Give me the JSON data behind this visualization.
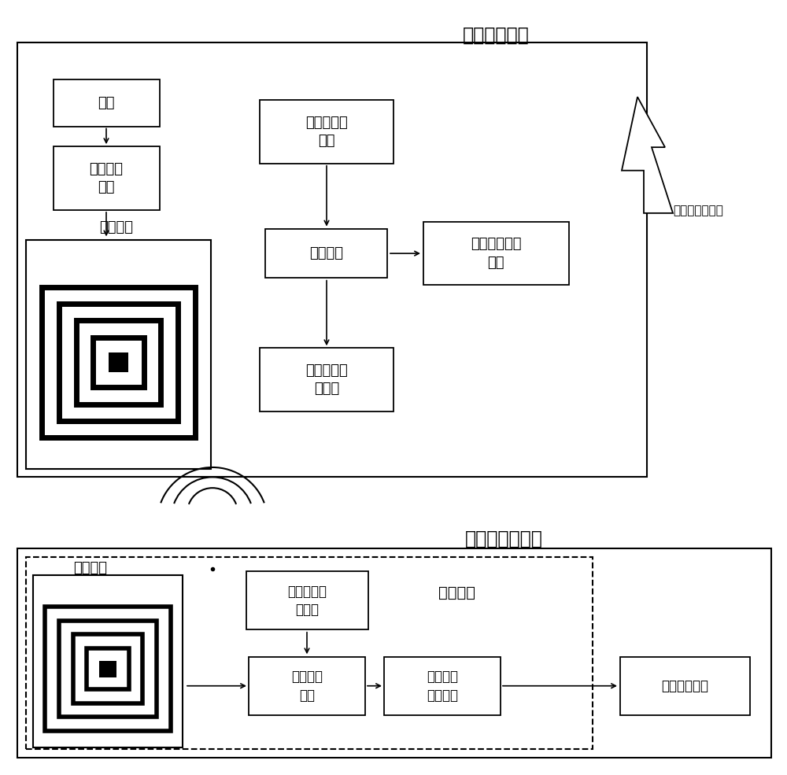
{
  "title_top": "个人终端组件",
  "title_bottom": "柔性传感器组件",
  "label_flexible_circuit": "柔性电路",
  "label_mine": "至矿井监控中心",
  "label_supply_coil": "供电线圈",
  "label_receive_coil": "受电线圈",
  "label_battery": "电池",
  "label_wireless_power_module": "无线供电\n模块",
  "label_analysis_alarm": "分析与报警\n模块",
  "label_storage": "存储模块",
  "label_remote_comm": "远程通信发射\n模块",
  "label_wireless_comm_recv": "无线通信接\n收模块",
  "label_wireless_comm_send_bot": "无线通信发\n射模块",
  "label_wireless_power_bot": "无线电源\n模块",
  "label_ecg": "心电信号\n采集模块",
  "label_metal_electrode": "金属薄膜电极",
  "bg_color": "#ffffff"
}
